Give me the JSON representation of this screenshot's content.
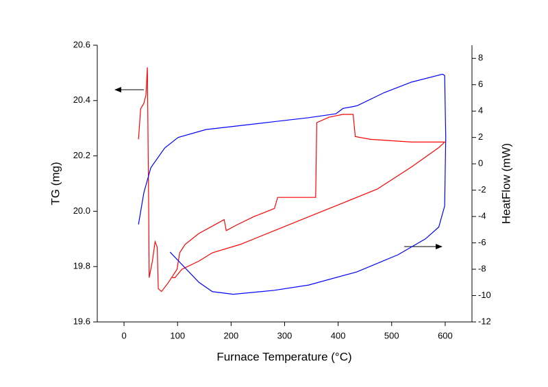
{
  "chart_data": {
    "type": "line",
    "x_label": "Furnace Temperature (°C)",
    "y_label": "TG (mg)",
    "y2_label": "HeatFlow (mW)",
    "xlim": [
      -50,
      650
    ],
    "xticks": [
      0,
      100,
      200,
      300,
      400,
      500,
      600
    ],
    "ylim": [
      19.6,
      20.6
    ],
    "yticks": [
      19.6,
      19.8,
      {
        "value": 20,
        "label": "20.0"
      },
      20.2,
      20.4,
      20.6
    ],
    "y2lim": [
      -12,
      9
    ],
    "y2ticks": [
      -12,
      -10,
      -8,
      -6,
      -4,
      -2,
      0,
      2,
      4,
      6,
      8
    ],
    "series": [
      {
        "color": "#ff0000",
        "x": [
          27,
          31,
          37,
          41,
          43.6,
          46,
          47,
          53,
          58,
          62,
          64,
          70,
          82,
          99,
          104,
          114,
          140,
          178,
          187,
          191,
          210,
          242,
          281,
          287,
          332,
          358,
          360,
          383,
          409,
          428,
          432,
          460,
          537,
          599,
          588,
          537,
          473,
          409,
          345,
          281,
          217,
          165,
          140,
          108,
          95,
          90
        ],
        "values": [
          20.26,
          20.37,
          20.39,
          20.42,
          20.52,
          20.02,
          19.76,
          19.82,
          19.89,
          19.87,
          19.72,
          19.71,
          19.74,
          19.79,
          19.85,
          19.88,
          19.92,
          19.96,
          19.97,
          19.93,
          19.95,
          19.98,
          20.01,
          20.05,
          20.05,
          20.05,
          20.32,
          20.34,
          20.35,
          20.35,
          20.27,
          20.26,
          20.25,
          20.25,
          20.23,
          20.16,
          20.08,
          20.03,
          19.98,
          19.93,
          19.88,
          19.85,
          19.82,
          19.79,
          19.76,
          19.76
        ]
      },
      {
        "color": "#0000ff",
        "axis": "y2",
        "x": [
          27,
          37,
          50,
          76,
          101,
          153,
          217,
          281,
          345,
          396,
          409,
          435,
          486,
          537,
          595,
          599,
          601,
          599,
          588,
          563,
          512,
          435,
          345,
          281,
          204,
          165,
          140,
          86
        ],
        "values": [
          -4.6,
          -2.2,
          -0.3,
          1.2,
          2.0,
          2.6,
          2.9,
          3.2,
          3.5,
          3.8,
          4.2,
          4.4,
          5.4,
          6.2,
          6.8,
          6.7,
          2.0,
          -3.2,
          -4.8,
          -5.7,
          -6.9,
          -8.2,
          -9.2,
          -9.6,
          -9.9,
          -9.7,
          -9.0,
          -6.7
        ]
      }
    ]
  }
}
